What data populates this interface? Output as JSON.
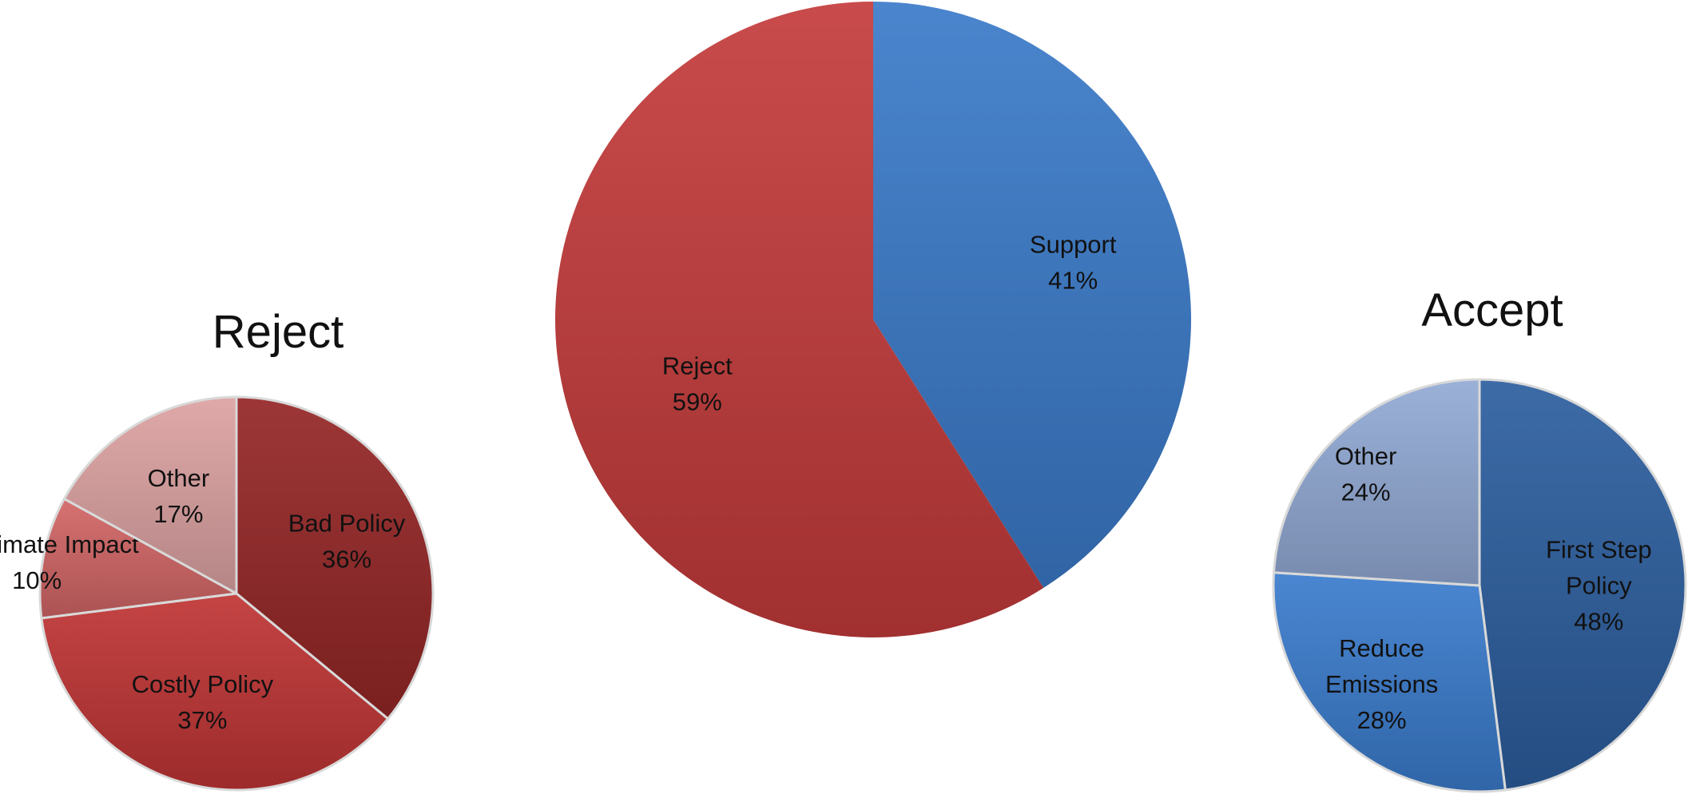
{
  "chart_data": [
    {
      "type": "pie",
      "id": "main",
      "title": "",
      "slices": [
        {
          "label": "Support",
          "value": 41,
          "value_label": "41%",
          "color": "#3a7ac9"
        },
        {
          "label": "Reject",
          "value": 59,
          "value_label": "59%",
          "color": "#c43b3b"
        }
      ]
    },
    {
      "type": "pie",
      "id": "reject",
      "title": "Reject",
      "slices": [
        {
          "label": "Bad Policy",
          "value": 36,
          "value_label": "36%",
          "color": "#952626"
        },
        {
          "label": "Costly  Policy",
          "value": 37,
          "value_label": "37%",
          "color": "#c03434"
        },
        {
          "label": "No Climate Impact",
          "value": 10,
          "value_label": "10%",
          "color": "#d26565"
        },
        {
          "label": "Other",
          "value": 17,
          "value_label": "17%",
          "color": "#dda2a2"
        }
      ]
    },
    {
      "type": "pie",
      "id": "accept",
      "title": "Accept",
      "slices": [
        {
          "label": "First Step Policy",
          "label_lines": [
            "First Step",
            "Policy"
          ],
          "value": 48,
          "value_label": "48%",
          "color": "#2c5e9e"
        },
        {
          "label": "Reduce Emissions",
          "label_lines": [
            "Reduce",
            "Emissions"
          ],
          "value": 28,
          "value_label": "28%",
          "color": "#3a7ccd"
        },
        {
          "label": "Other",
          "value": 24,
          "value_label": "24%",
          "color": "#92aad5"
        }
      ]
    }
  ]
}
